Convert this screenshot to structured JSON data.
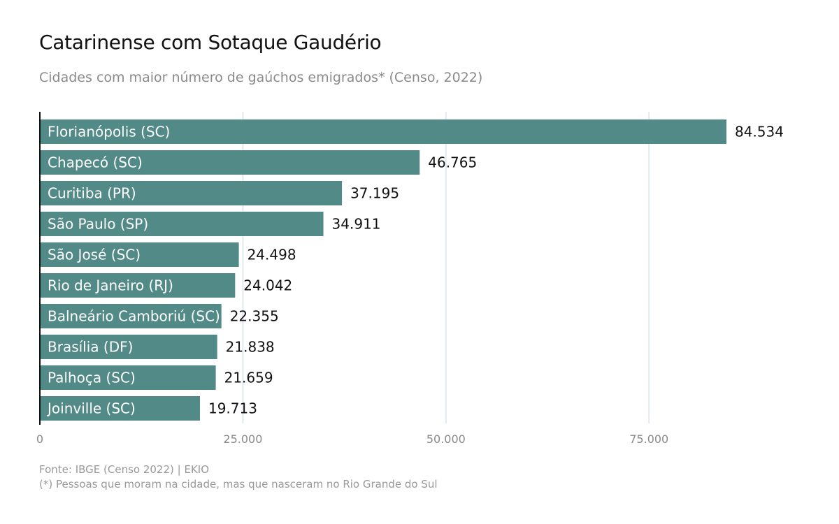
{
  "title": "Catarinense com Sotaque Gaudério",
  "subtitle": "Cidades com maior número de gaúchos emigrados* (Censo, 2022)",
  "caption": {
    "source": "Fonte: IBGE (Censo 2022) | EKIO",
    "note": "(*) Pessoas que moram na cidade, mas que nasceram no Rio Grande do Sul"
  },
  "colors": {
    "bar": "#528a88",
    "grid": "#e3e9f1",
    "axis": "#111111",
    "tick_text": "#8a8a8a"
  },
  "chart_data": {
    "type": "bar",
    "orientation": "horizontal",
    "categories": [
      "Florianópolis (SC)",
      "Chapecó (SC)",
      "Curitiba (PR)",
      "São Paulo (SP)",
      "São José (SC)",
      "Rio de Janeiro (RJ)",
      "Balneário Camboriú (SC)",
      "Brasília (DF)",
      "Palhoça (SC)",
      "Joinville (SC)"
    ],
    "values": [
      84534,
      46765,
      37195,
      34911,
      24498,
      24042,
      22355,
      21838,
      21659,
      19713
    ],
    "value_labels": [
      "84.534",
      "46.765",
      "37.195",
      "34.911",
      "24.498",
      "24.042",
      "22.355",
      "21.838",
      "21.659",
      "19.713"
    ],
    "xlim": [
      0,
      92000
    ],
    "x_ticks": [
      0,
      25000,
      50000,
      75000
    ],
    "x_tick_labels": [
      "0",
      "25.000",
      "50.000",
      "75.000"
    ],
    "grid": "vertical",
    "legend": "none"
  }
}
